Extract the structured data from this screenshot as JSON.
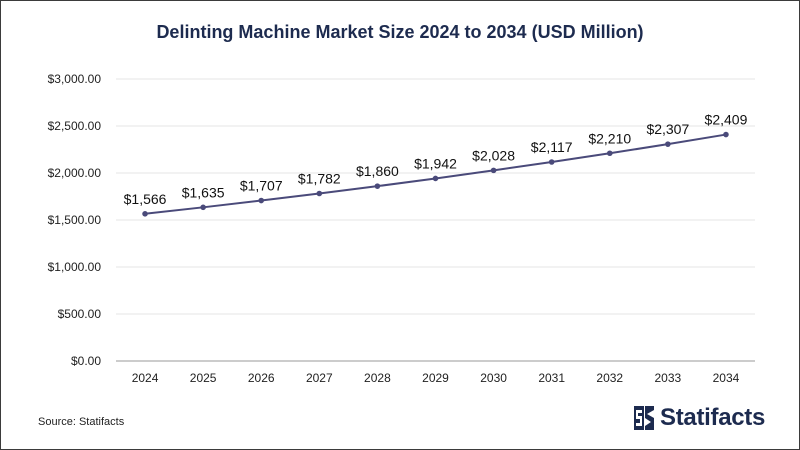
{
  "chart_data": {
    "type": "line",
    "title": "Delinting Machine Market Size 2024 to 2034 (USD Million)",
    "xlabel": "",
    "ylabel": "",
    "categories": [
      "2024",
      "2025",
      "2026",
      "2027",
      "2028",
      "2029",
      "2030",
      "2031",
      "2032",
      "2033",
      "2034"
    ],
    "series": [
      {
        "values": [
          1566,
          1635,
          1707,
          1782,
          1860,
          1942,
          2028,
          2117,
          2210,
          2307,
          2409
        ],
        "data_labels": [
          "$1,566",
          "$1,635",
          "$1,707",
          "$1,782",
          "$1,860",
          "$1,942",
          "$2,028",
          "$2,117",
          "$2,210",
          "$2,307",
          "$2,409"
        ],
        "color": "#4a4a7a"
      }
    ],
    "ylim": [
      0,
      3000
    ],
    "y_ticks": [
      0,
      500,
      1000,
      1500,
      2000,
      2500,
      3000
    ],
    "y_tick_labels": [
      "$0.00",
      "$500.00",
      "$1,000.00",
      "$1,500.00",
      "$2,000.00",
      "$2,500.00",
      "$3,000.00"
    ],
    "grid": true,
    "legend": "none"
  },
  "footer": {
    "source": "Source: Statifacts",
    "brand": "Statifacts"
  },
  "colors": {
    "title": "#1d2b4f",
    "line": "#4a4a7a",
    "grid": "#e6e6e6",
    "axis": "#999999",
    "brand": "#1d2b4f"
  }
}
